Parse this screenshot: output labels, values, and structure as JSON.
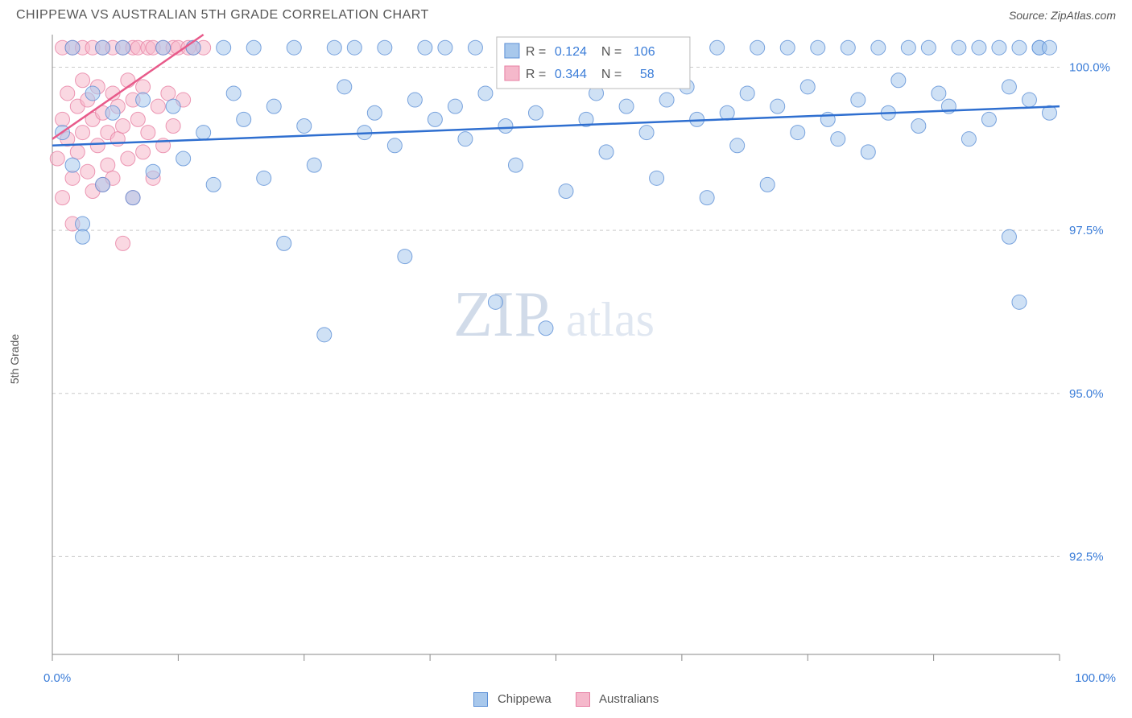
{
  "header": {
    "title": "CHIPPEWA VS AUSTRALIAN 5TH GRADE CORRELATION CHART",
    "source": "Source: ZipAtlas.com"
  },
  "axis": {
    "ylabel": "5th Grade",
    "x_min_label": "0.0%",
    "x_max_label": "100.0%",
    "xlim": [
      0,
      100
    ],
    "ylim": [
      91.0,
      100.5
    ],
    "yticks": [
      92.5,
      95.0,
      97.5,
      100.0
    ],
    "ytick_labels": [
      "92.5%",
      "95.0%",
      "97.5%",
      "100.0%"
    ],
    "xticks": [
      0,
      12.5,
      25,
      37.5,
      50,
      62.5,
      75,
      87.5,
      100
    ]
  },
  "watermark": {
    "zip": "ZIP",
    "atlas": "atlas"
  },
  "colors": {
    "blue_fill": "#a8c8ec",
    "blue_stroke": "#5b8fd6",
    "pink_fill": "#f5b8cb",
    "pink_stroke": "#e77fa3",
    "blue_line": "#2f6fd0",
    "pink_line": "#e85a8a",
    "grid": "#cccccc",
    "text_blue": "#3b7dd8",
    "background": "#ffffff"
  },
  "stats": {
    "series1": {
      "R_label": "R =",
      "R": "0.124",
      "N_label": "N =",
      "N": "106"
    },
    "series2": {
      "R_label": "R =",
      "R": "0.344",
      "N_label": "N =",
      "N": "58"
    }
  },
  "legend": {
    "series1": "Chippewa",
    "series2": "Australians"
  },
  "chart": {
    "type": "scatter",
    "marker_radius": 9,
    "marker_opacity": 0.55,
    "trend_lines": {
      "blue": {
        "x1": 0,
        "y1": 98.8,
        "x2": 100,
        "y2": 99.4
      },
      "pink": {
        "x1": 0,
        "y1": 98.9,
        "x2": 15,
        "y2": 100.5
      }
    },
    "series_blue": [
      [
        1,
        99.0
      ],
      [
        2,
        100.3
      ],
      [
        2,
        98.5
      ],
      [
        3,
        97.6
      ],
      [
        3,
        97.4
      ],
      [
        4,
        99.6
      ],
      [
        5,
        100.3
      ],
      [
        5,
        98.2
      ],
      [
        6,
        99.3
      ],
      [
        7,
        100.3
      ],
      [
        8,
        98.0
      ],
      [
        9,
        99.5
      ],
      [
        10,
        98.4
      ],
      [
        11,
        100.3
      ],
      [
        12,
        99.4
      ],
      [
        13,
        98.6
      ],
      [
        14,
        100.3
      ],
      [
        15,
        99.0
      ],
      [
        16,
        98.2
      ],
      [
        17,
        100.3
      ],
      [
        18,
        99.6
      ],
      [
        19,
        99.2
      ],
      [
        20,
        100.3
      ],
      [
        21,
        98.3
      ],
      [
        22,
        99.4
      ],
      [
        23,
        97.3
      ],
      [
        24,
        100.3
      ],
      [
        25,
        99.1
      ],
      [
        26,
        98.5
      ],
      [
        27,
        95.9
      ],
      [
        28,
        100.3
      ],
      [
        29,
        99.7
      ],
      [
        30,
        100.3
      ],
      [
        31,
        99.0
      ],
      [
        32,
        99.3
      ],
      [
        33,
        100.3
      ],
      [
        34,
        98.8
      ],
      [
        35,
        97.1
      ],
      [
        36,
        99.5
      ],
      [
        37,
        100.3
      ],
      [
        38,
        99.2
      ],
      [
        39,
        100.3
      ],
      [
        40,
        99.4
      ],
      [
        41,
        98.9
      ],
      [
        42,
        100.3
      ],
      [
        43,
        99.6
      ],
      [
        44,
        96.4
      ],
      [
        45,
        99.1
      ],
      [
        46,
        98.5
      ],
      [
        47,
        100.3
      ],
      [
        48,
        99.3
      ],
      [
        49,
        96.0
      ],
      [
        50,
        99.8
      ],
      [
        51,
        98.1
      ],
      [
        52,
        100.3
      ],
      [
        53,
        99.2
      ],
      [
        54,
        99.6
      ],
      [
        55,
        98.7
      ],
      [
        56,
        100.3
      ],
      [
        57,
        99.4
      ],
      [
        58,
        100.3
      ],
      [
        59,
        99.0
      ],
      [
        60,
        98.3
      ],
      [
        61,
        99.5
      ],
      [
        62,
        100.3
      ],
      [
        63,
        99.7
      ],
      [
        64,
        99.2
      ],
      [
        65,
        98.0
      ],
      [
        66,
        100.3
      ],
      [
        67,
        99.3
      ],
      [
        68,
        98.8
      ],
      [
        69,
        99.6
      ],
      [
        70,
        100.3
      ],
      [
        71,
        98.2
      ],
      [
        72,
        99.4
      ],
      [
        73,
        100.3
      ],
      [
        74,
        99.0
      ],
      [
        75,
        99.7
      ],
      [
        76,
        100.3
      ],
      [
        77,
        99.2
      ],
      [
        78,
        98.9
      ],
      [
        79,
        100.3
      ],
      [
        80,
        99.5
      ],
      [
        81,
        98.7
      ],
      [
        82,
        100.3
      ],
      [
        83,
        99.3
      ],
      [
        84,
        99.8
      ],
      [
        85,
        100.3
      ],
      [
        86,
        99.1
      ],
      [
        87,
        100.3
      ],
      [
        88,
        99.6
      ],
      [
        89,
        99.4
      ],
      [
        90,
        100.3
      ],
      [
        91,
        98.9
      ],
      [
        92,
        100.3
      ],
      [
        93,
        99.2
      ],
      [
        94,
        100.3
      ],
      [
        95,
        99.7
      ],
      [
        95,
        97.4
      ],
      [
        96,
        100.3
      ],
      [
        96,
        96.4
      ],
      [
        97,
        99.5
      ],
      [
        98,
        100.3
      ],
      [
        98,
        100.3
      ],
      [
        99,
        99.3
      ],
      [
        99,
        100.3
      ]
    ],
    "series_pink": [
      [
        0.5,
        98.6
      ],
      [
        1,
        99.2
      ],
      [
        1,
        98.0
      ],
      [
        1,
        100.3
      ],
      [
        1.5,
        98.9
      ],
      [
        1.5,
        99.6
      ],
      [
        2,
        98.3
      ],
      [
        2,
        100.3
      ],
      [
        2,
        97.6
      ],
      [
        2.5,
        99.4
      ],
      [
        2.5,
        98.7
      ],
      [
        3,
        99.8
      ],
      [
        3,
        99.0
      ],
      [
        3,
        100.3
      ],
      [
        3.5,
        98.4
      ],
      [
        3.5,
        99.5
      ],
      [
        4,
        98.1
      ],
      [
        4,
        100.3
      ],
      [
        4,
        99.2
      ],
      [
        4.5,
        98.8
      ],
      [
        4.5,
        99.7
      ],
      [
        5,
        98.2
      ],
      [
        5,
        100.3
      ],
      [
        5,
        99.3
      ],
      [
        5.5,
        99.0
      ],
      [
        5.5,
        98.5
      ],
      [
        6,
        100.3
      ],
      [
        6,
        99.6
      ],
      [
        6,
        98.3
      ],
      [
        6.5,
        99.4
      ],
      [
        6.5,
        98.9
      ],
      [
        7,
        100.3
      ],
      [
        7,
        99.1
      ],
      [
        7,
        97.3
      ],
      [
        7.5,
        99.8
      ],
      [
        7.5,
        98.6
      ],
      [
        8,
        100.3
      ],
      [
        8,
        99.5
      ],
      [
        8,
        98.0
      ],
      [
        8.5,
        99.2
      ],
      [
        8.5,
        100.3
      ],
      [
        9,
        98.7
      ],
      [
        9,
        99.7
      ],
      [
        9.5,
        100.3
      ],
      [
        9.5,
        99.0
      ],
      [
        10,
        98.3
      ],
      [
        10,
        100.3
      ],
      [
        10.5,
        99.4
      ],
      [
        11,
        100.3
      ],
      [
        11,
        98.8
      ],
      [
        11.5,
        99.6
      ],
      [
        12,
        100.3
      ],
      [
        12,
        99.1
      ],
      [
        12.5,
        100.3
      ],
      [
        13,
        99.5
      ],
      [
        13.5,
        100.3
      ],
      [
        14,
        100.3
      ],
      [
        15,
        100.3
      ]
    ]
  }
}
